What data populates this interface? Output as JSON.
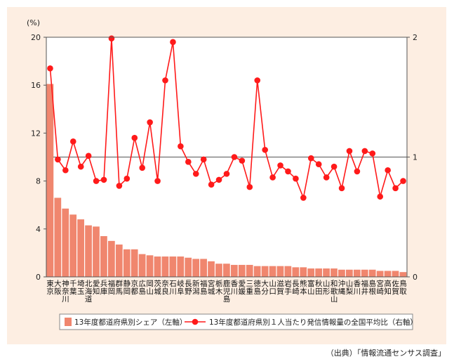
{
  "source_note": "（出典）「情報流通センサス調査」",
  "colors": {
    "panel_bg": "#fdeee2",
    "plot_bg": "#ffffff",
    "bar": "#f0866e",
    "line": "#ff1a1a",
    "reference_line": "#555555"
  },
  "chart_data": {
    "type": "bar",
    "left_axis": {
      "unit_label": "(%)",
      "ylim": [
        0,
        20
      ],
      "ticks": [
        "0",
        "4",
        "8",
        "12",
        "16",
        "20"
      ]
    },
    "right_axis": {
      "ylim": [
        0,
        2
      ],
      "ticks": [
        "0",
        "1",
        "2"
      ],
      "reference_value": 1
    },
    "categories": [
      "東京",
      "大阪",
      "神奈川",
      "千葉",
      "埼玉",
      "北海道",
      "愛知",
      "兵庫",
      "福岡",
      "群馬",
      "静岡",
      "京都",
      "広島",
      "岡山",
      "茨城",
      "奈良",
      "石川",
      "岐阜",
      "長野",
      "新潟",
      "福島",
      "宮城",
      "栃木",
      "鹿児島",
      "香川",
      "愛媛",
      "三重",
      "徳島",
      "大分",
      "山口",
      "滋賀",
      "岩手",
      "長崎",
      "熊本",
      "富山",
      "秋田",
      "山形",
      "和歌山",
      "沖縄",
      "山梨",
      "香川",
      "福井",
      "島根",
      "宮崎",
      "高知",
      "佐賀",
      "鳥取"
    ],
    "series": [
      {
        "name": "13年度都道府県別シェア（左軸）",
        "type": "bar",
        "axis": "left",
        "values": [
          16.1,
          6.6,
          5.7,
          5.2,
          4.8,
          4.3,
          4.2,
          3.4,
          3.0,
          2.7,
          2.3,
          2.3,
          1.9,
          1.8,
          1.7,
          1.7,
          1.7,
          1.7,
          1.6,
          1.5,
          1.5,
          1.3,
          1.1,
          1.1,
          1.0,
          1.0,
          1.0,
          0.9,
          0.9,
          0.9,
          0.9,
          0.9,
          0.8,
          0.8,
          0.7,
          0.7,
          0.7,
          0.7,
          0.6,
          0.6,
          0.6,
          0.6,
          0.6,
          0.5,
          0.5,
          0.5,
          0.4
        ]
      },
      {
        "name": "13年度都道府県別１人当たり発信情報量の全国平均比（右軸）",
        "type": "line",
        "axis": "right",
        "values": [
          1.74,
          0.98,
          0.89,
          1.13,
          0.92,
          1.01,
          0.8,
          0.81,
          1.99,
          0.76,
          0.82,
          1.16,
          0.91,
          1.29,
          0.8,
          1.64,
          1.96,
          1.09,
          0.96,
          0.86,
          0.98,
          0.77,
          0.81,
          0.86,
          1.0,
          0.97,
          0.75,
          1.64,
          1.06,
          0.83,
          0.93,
          0.88,
          0.82,
          0.66,
          0.99,
          0.94,
          0.83,
          0.92,
          0.74,
          1.05,
          0.88,
          1.05,
          1.03,
          0.67,
          0.89,
          0.74,
          0.8
        ]
      }
    ]
  }
}
